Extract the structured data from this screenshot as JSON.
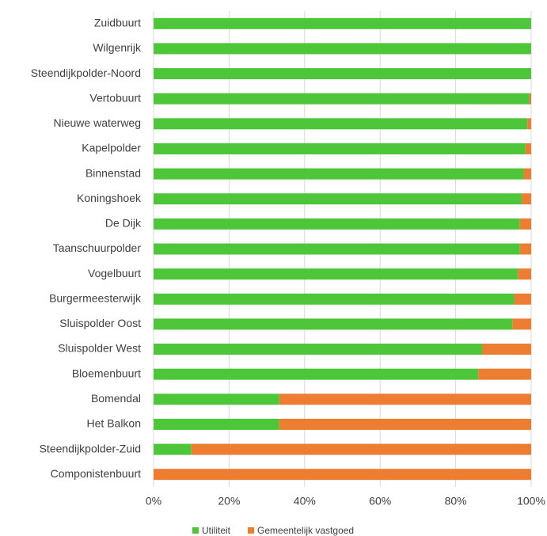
{
  "chart_data": {
    "type": "stacked_barh",
    "categories": [
      "Zuidbuurt",
      "Wilgenrijk",
      "Steendijkpolder-Noord",
      "Vertobuurt",
      "Nieuwe waterweg",
      "Kapelpolder",
      "Binnenstad",
      "Koningshoek",
      "De Dijk",
      "Taanschuurpolder",
      "Vogelbuurt",
      "Burgermeesterwijk",
      "Sluispolder Oost",
      "Sluispolder West",
      "Bloemenbuurt",
      "Bomendal",
      "Het Balkon",
      "Steendijkpolder-Zuid",
      "Componistenbuurt"
    ],
    "series": [
      {
        "name": "Utiliteit",
        "color": "#4ec63a",
        "values": [
          100,
          100,
          100,
          99.5,
          99,
          98.5,
          98,
          97.5,
          97,
          97,
          96.5,
          95.5,
          95,
          87,
          86,
          33.3,
          33.3,
          10,
          0
        ]
      },
      {
        "name": "Gemeentelijk vastgoed",
        "color": "#ed7d31",
        "values": [
          0,
          0,
          0,
          0.5,
          1,
          1.5,
          2,
          2.5,
          3,
          3,
          3.5,
          4.5,
          5,
          13,
          14,
          66.7,
          66.7,
          90,
          100
        ]
      }
    ],
    "xlim": [
      0,
      100
    ],
    "xticks": [
      {
        "value": 0,
        "label": "0%"
      },
      {
        "value": 20,
        "label": "20%"
      },
      {
        "value": 40,
        "label": "40%"
      },
      {
        "value": 60,
        "label": "60%"
      },
      {
        "value": 80,
        "label": "80%"
      },
      {
        "value": 100,
        "label": "100%"
      }
    ],
    "grid": true,
    "legend": "bottom"
  }
}
